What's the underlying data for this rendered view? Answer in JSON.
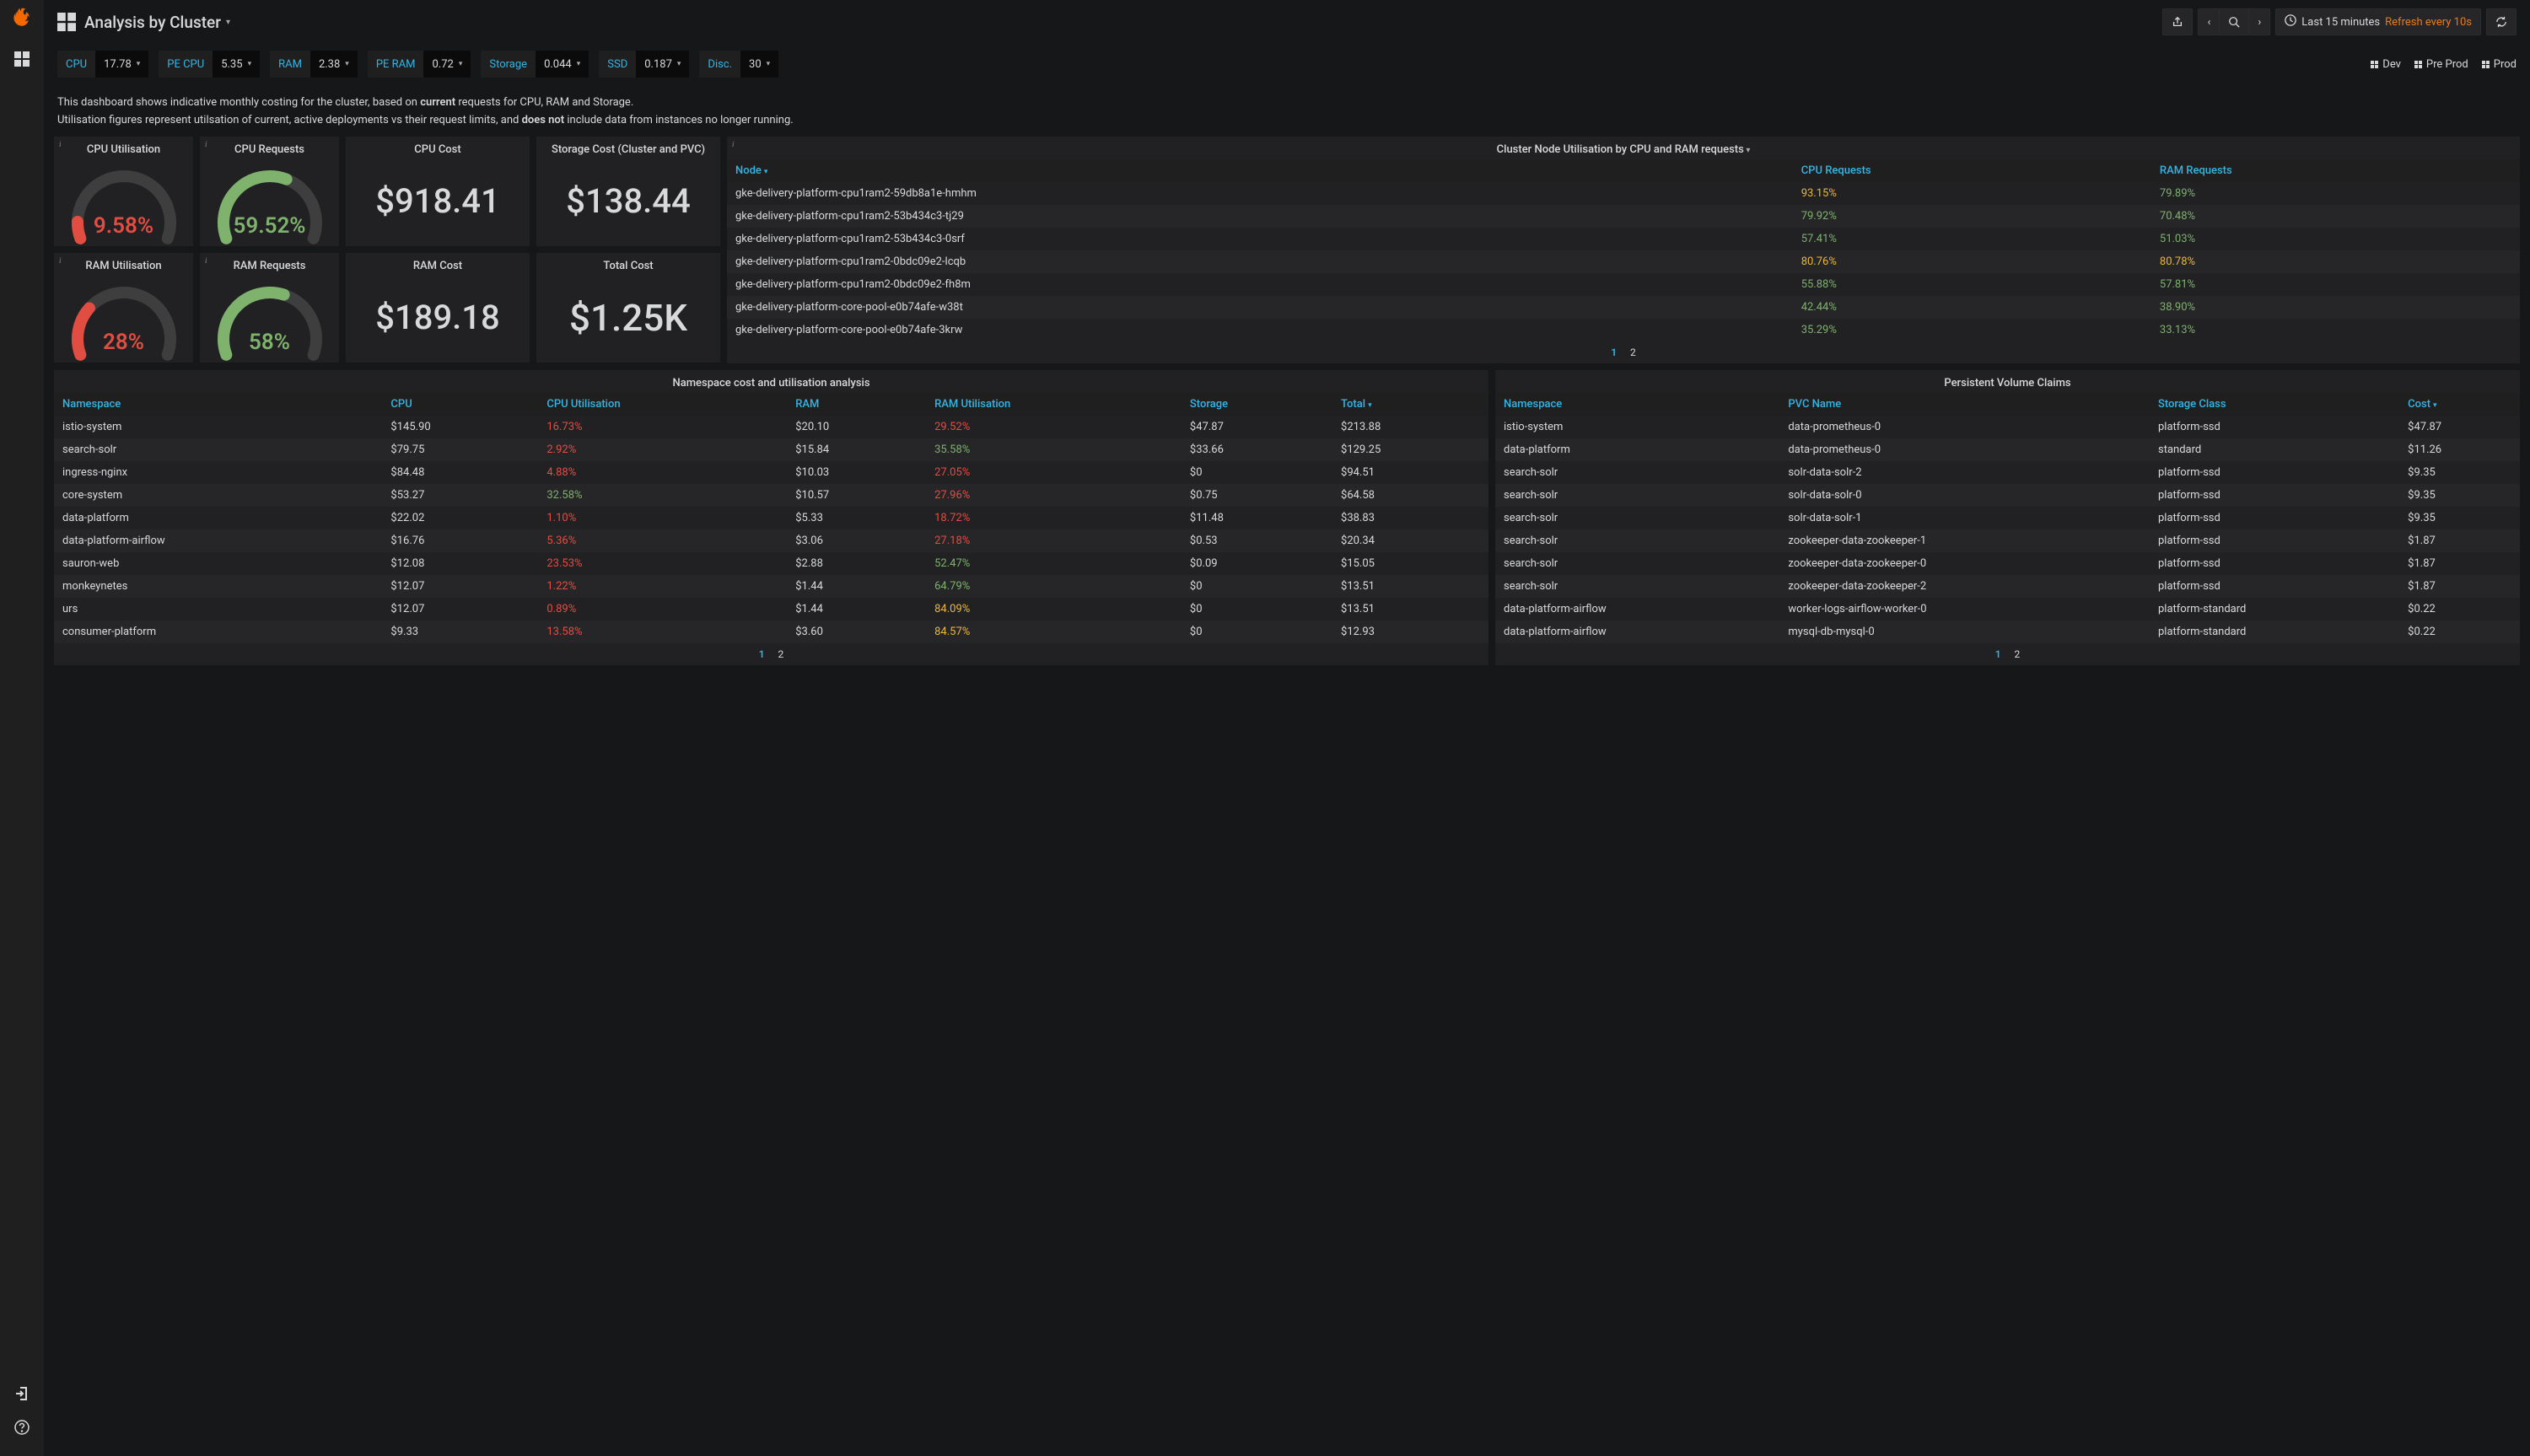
{
  "header": {
    "title": "Analysis by Cluster",
    "timerange": "Last 15 minutes",
    "refresh": "Refresh every 10s"
  },
  "vars": [
    {
      "label": "CPU",
      "value": "17.78"
    },
    {
      "label": "PE CPU",
      "value": "5.35"
    },
    {
      "label": "RAM",
      "value": "2.38"
    },
    {
      "label": "PE RAM",
      "value": "0.72"
    },
    {
      "label": "Storage",
      "value": "0.044"
    },
    {
      "label": "SSD",
      "value": "0.187"
    },
    {
      "label": "Disc.",
      "value": "30"
    }
  ],
  "navlinks": [
    "Dev",
    "Pre Prod",
    "Prod"
  ],
  "description": {
    "line1a": "This dashboard shows indicative monthly costing for the cluster, based on ",
    "line1b": "current",
    "line1c": " requests for CPU, RAM and Storage.",
    "line2a": "Utilisation figures represent utilsation of current, active deployments vs their request limits, and ",
    "line2b": "does not",
    "line2c": " include data from instances no longer running."
  },
  "gauges": {
    "cpu_util": {
      "title": "CPU Utilisation",
      "value": "9.58%",
      "pct": 9.58,
      "color": "#e24d42"
    },
    "cpu_req": {
      "title": "CPU Requests",
      "value": "59.52%",
      "pct": 59.52,
      "color": "#7eb26d"
    },
    "ram_util": {
      "title": "RAM Utilisation",
      "value": "28%",
      "pct": 28,
      "color": "#e24d42"
    },
    "ram_req": {
      "title": "RAM Requests",
      "value": "58%",
      "pct": 58,
      "color": "#7eb26d"
    }
  },
  "stats": {
    "cpu_cost": {
      "title": "CPU Cost",
      "value": "$918.41"
    },
    "storage_cost": {
      "title": "Storage Cost (Cluster and PVC)",
      "value": "$138.44"
    },
    "ram_cost": {
      "title": "RAM Cost",
      "value": "$189.18"
    },
    "total_cost": {
      "title": "Total Cost",
      "value": "$1.25K"
    }
  },
  "node_table": {
    "title": "Cluster Node Utilisation by CPU and RAM requests",
    "cols": [
      "Node",
      "CPU Requests",
      "RAM Requests"
    ],
    "rows": [
      {
        "node": "gke-delivery-platform-cpu1ram2-59db8a1e-hmhm",
        "cpu": "93.15%",
        "cpu_c": "c-orange",
        "ram": "79.89%",
        "ram_c": "c-green"
      },
      {
        "node": "gke-delivery-platform-cpu1ram2-53b434c3-tj29",
        "cpu": "79.92%",
        "cpu_c": "c-green",
        "ram": "70.48%",
        "ram_c": "c-green"
      },
      {
        "node": "gke-delivery-platform-cpu1ram2-53b434c3-0srf",
        "cpu": "57.41%",
        "cpu_c": "c-green",
        "ram": "51.03%",
        "ram_c": "c-green"
      },
      {
        "node": "gke-delivery-platform-cpu1ram2-0bdc09e2-lcqb",
        "cpu": "80.76%",
        "cpu_c": "c-orange",
        "ram": "80.78%",
        "ram_c": "c-orange"
      },
      {
        "node": "gke-delivery-platform-cpu1ram2-0bdc09e2-fh8m",
        "cpu": "55.88%",
        "cpu_c": "c-green",
        "ram": "57.81%",
        "ram_c": "c-green"
      },
      {
        "node": "gke-delivery-platform-core-pool-e0b74afe-w38t",
        "cpu": "42.44%",
        "cpu_c": "c-green",
        "ram": "38.90%",
        "ram_c": "c-green"
      },
      {
        "node": "gke-delivery-platform-core-pool-e0b74afe-3krw",
        "cpu": "35.29%",
        "cpu_c": "c-green",
        "ram": "33.13%",
        "ram_c": "c-green"
      }
    ],
    "pages": [
      "1",
      "2"
    ]
  },
  "ns_table": {
    "title": "Namespace cost and utilisation analysis",
    "cols": [
      "Namespace",
      "CPU",
      "CPU Utilisation",
      "RAM",
      "RAM Utilisation",
      "Storage",
      "Total"
    ],
    "rows": [
      {
        "ns": "istio-system",
        "cpu": "$145.90",
        "cu": "16.73%",
        "cu_c": "c-red",
        "ram": "$20.10",
        "ru": "29.52%",
        "ru_c": "c-red",
        "st": "$47.87",
        "tot": "$213.88"
      },
      {
        "ns": "search-solr",
        "cpu": "$79.75",
        "cu": "2.92%",
        "cu_c": "c-red",
        "ram": "$15.84",
        "ru": "35.58%",
        "ru_c": "c-green",
        "st": "$33.66",
        "tot": "$129.25"
      },
      {
        "ns": "ingress-nginx",
        "cpu": "$84.48",
        "cu": "4.88%",
        "cu_c": "c-red",
        "ram": "$10.03",
        "ru": "27.05%",
        "ru_c": "c-red",
        "st": "$0",
        "tot": "$94.51"
      },
      {
        "ns": "core-system",
        "cpu": "$53.27",
        "cu": "32.58%",
        "cu_c": "c-green",
        "ram": "$10.57",
        "ru": "27.96%",
        "ru_c": "c-red",
        "st": "$0.75",
        "tot": "$64.58"
      },
      {
        "ns": "data-platform",
        "cpu": "$22.02",
        "cu": "1.10%",
        "cu_c": "c-red",
        "ram": "$5.33",
        "ru": "18.72%",
        "ru_c": "c-red",
        "st": "$11.48",
        "tot": "$38.83"
      },
      {
        "ns": "data-platform-airflow",
        "cpu": "$16.76",
        "cu": "5.36%",
        "cu_c": "c-red",
        "ram": "$3.06",
        "ru": "27.18%",
        "ru_c": "c-red",
        "st": "$0.53",
        "tot": "$20.34"
      },
      {
        "ns": "sauron-web",
        "cpu": "$12.08",
        "cu": "23.53%",
        "cu_c": "c-red",
        "ram": "$2.88",
        "ru": "52.47%",
        "ru_c": "c-green",
        "st": "$0.09",
        "tot": "$15.05"
      },
      {
        "ns": "monkeynetes",
        "cpu": "$12.07",
        "cu": "1.22%",
        "cu_c": "c-red",
        "ram": "$1.44",
        "ru": "64.79%",
        "ru_c": "c-green",
        "st": "$0",
        "tot": "$13.51"
      },
      {
        "ns": "urs",
        "cpu": "$12.07",
        "cu": "0.89%",
        "cu_c": "c-red",
        "ram": "$1.44",
        "ru": "84.09%",
        "ru_c": "c-orange",
        "st": "$0",
        "tot": "$13.51"
      },
      {
        "ns": "consumer-platform",
        "cpu": "$9.33",
        "cu": "13.58%",
        "cu_c": "c-red",
        "ram": "$3.60",
        "ru": "84.57%",
        "ru_c": "c-orange",
        "st": "$0",
        "tot": "$12.93"
      }
    ],
    "pages": [
      "1",
      "2"
    ]
  },
  "pvc_table": {
    "title": "Persistent Volume Claims",
    "cols": [
      "Namespace",
      "PVC Name",
      "Storage Class",
      "Cost"
    ],
    "rows": [
      {
        "ns": "istio-system",
        "pvc": "data-prometheus-0",
        "sc": "platform-ssd",
        "cost": "$47.87"
      },
      {
        "ns": "data-platform",
        "pvc": "data-prometheus-0",
        "sc": "standard",
        "cost": "$11.26"
      },
      {
        "ns": "search-solr",
        "pvc": "solr-data-solr-2",
        "sc": "platform-ssd",
        "cost": "$9.35"
      },
      {
        "ns": "search-solr",
        "pvc": "solr-data-solr-0",
        "sc": "platform-ssd",
        "cost": "$9.35"
      },
      {
        "ns": "search-solr",
        "pvc": "solr-data-solr-1",
        "sc": "platform-ssd",
        "cost": "$9.35"
      },
      {
        "ns": "search-solr",
        "pvc": "zookeeper-data-zookeeper-1",
        "sc": "platform-ssd",
        "cost": "$1.87"
      },
      {
        "ns": "search-solr",
        "pvc": "zookeeper-data-zookeeper-0",
        "sc": "platform-ssd",
        "cost": "$1.87"
      },
      {
        "ns": "search-solr",
        "pvc": "zookeeper-data-zookeeper-2",
        "sc": "platform-ssd",
        "cost": "$1.87"
      },
      {
        "ns": "data-platform-airflow",
        "pvc": "worker-logs-airflow-worker-0",
        "sc": "platform-standard",
        "cost": "$0.22"
      },
      {
        "ns": "data-platform-airflow",
        "pvc": "mysql-db-mysql-0",
        "sc": "platform-standard",
        "cost": "$0.22"
      }
    ],
    "pages": [
      "1",
      "2"
    ]
  },
  "colors": {
    "bg": "#161719",
    "panel": "#212124",
    "panel_alt": "#262628",
    "text": "#d8d9da",
    "link": "#33b5e5",
    "accent": "#eb7b18",
    "gauge_track": "#3e3e3e"
  }
}
